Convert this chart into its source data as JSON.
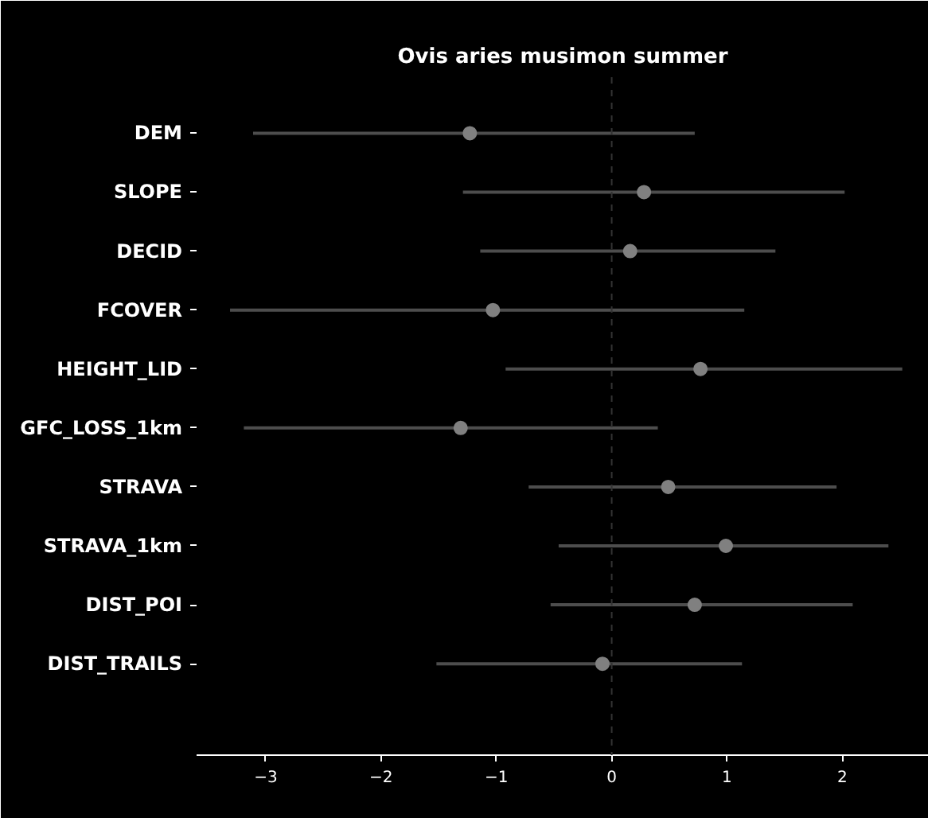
{
  "chart_data": {
    "type": "scatter",
    "title": "Ovis aries musimon summer",
    "orientation": "horizontal",
    "categories": [
      "DEM",
      "SLOPE",
      "DECID",
      "FCOVER",
      "HEIGHT_LID",
      "GFC_LOSS_1km",
      "STRAVA",
      "STRAVA_1km",
      "DIST_POI",
      "DIST_TRAILS"
    ],
    "color": "#808080",
    "values": [
      -1.23,
      0.28,
      0.16,
      -1.03,
      0.77,
      -1.31,
      0.49,
      0.99,
      0.72,
      -0.08
    ],
    "errors": [
      [
        -3.11,
        0.72
      ],
      [
        -1.29,
        2.02
      ],
      [
        -1.14,
        1.42
      ],
      [
        -3.31,
        1.15
      ],
      [
        -0.92,
        2.52
      ],
      [
        -3.19,
        0.4
      ],
      [
        -0.72,
        1.95
      ],
      [
        -0.46,
        2.4
      ],
      [
        -0.53,
        2.09
      ],
      [
        -1.52,
        1.13
      ]
    ],
    "xlim": [
      -3.6,
      2.75
    ],
    "xticks": [
      {
        "value": -3,
        "label": "−3"
      },
      {
        "value": -2,
        "label": "−2"
      },
      {
        "value": -1,
        "label": "−1"
      },
      0,
      1,
      2
    ],
    "ref_lines": [
      {
        "axis": "x",
        "value": 0,
        "color": "#333333",
        "line_style": "dashed"
      }
    ],
    "marker": "circle",
    "grid": false
  }
}
